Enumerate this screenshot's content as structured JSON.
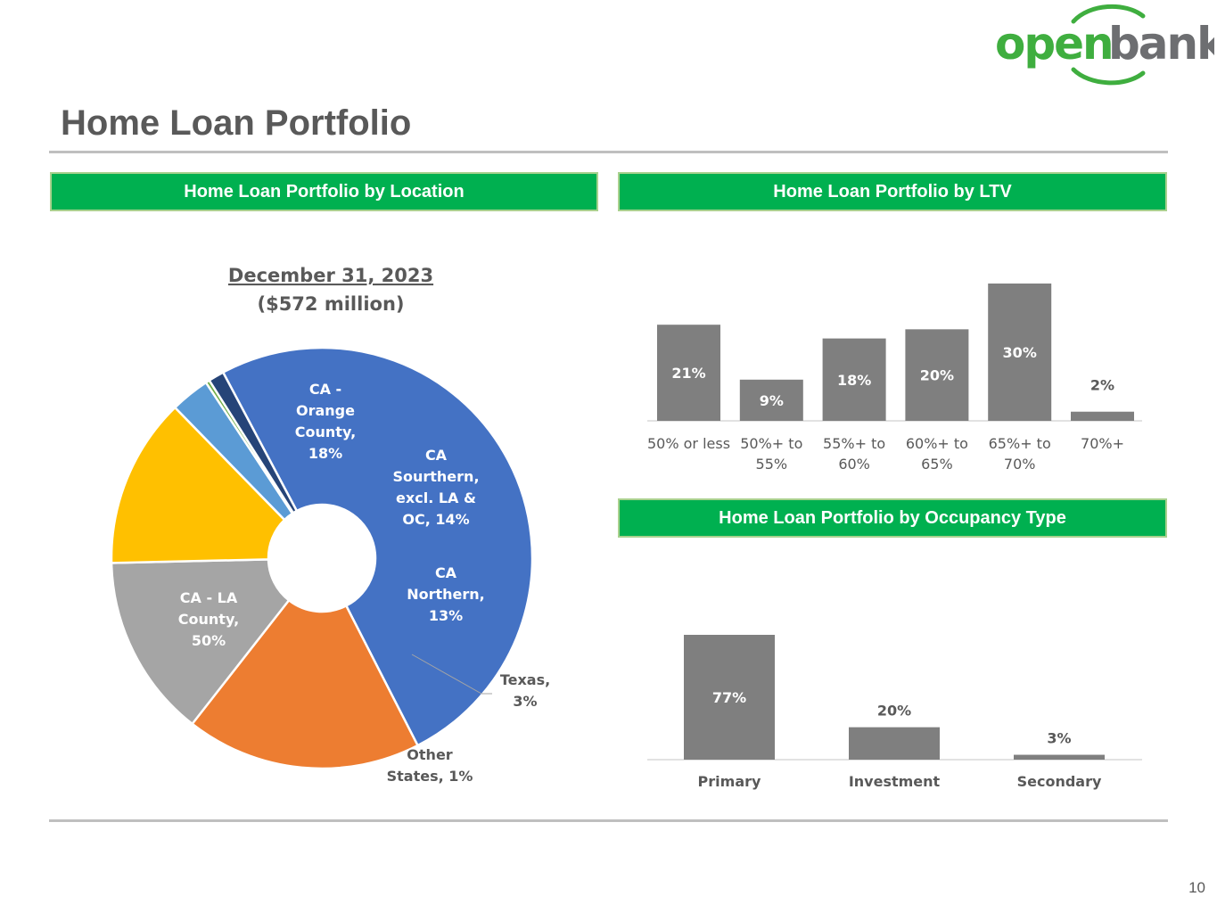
{
  "brand": {
    "logo_left": "open",
    "logo_right": "bank",
    "logo_color_green": "#3fae3f",
    "logo_color_gray": "#6d6e71"
  },
  "page": {
    "title": "Home Loan Portfolio",
    "page_number": "10"
  },
  "colors": {
    "header_green": "#00b050",
    "bar_gray": "#7f7f7f",
    "text_gray": "#595959"
  },
  "sections": {
    "location": "Home Loan Portfolio by Location",
    "ltv": "Home Loan Portfolio by LTV",
    "occupancy": "Home Loan Portfolio by Occupancy Type"
  },
  "chart_data": [
    {
      "type": "pie",
      "variant": "donut",
      "title": "December 31, 2023",
      "subtitle": "($572 million)",
      "slices": [
        {
          "label": "CA - LA County, 50%",
          "value": 50,
          "color": "#4472c4"
        },
        {
          "label": "CA - Orange County, 18%",
          "value": 18,
          "color": "#ed7d31"
        },
        {
          "label": "CA Sourthern, excl. LA & OC, 14%",
          "value": 14,
          "color": "#a5a5a5"
        },
        {
          "label": "CA Northern, 13%",
          "value": 13,
          "color": "#ffc000"
        },
        {
          "label": "Texas, 3%",
          "value": 3,
          "color": "#5b9bd5"
        },
        {
          "label": "",
          "value": 0.3,
          "color": "#70ad47"
        },
        {
          "label": "Other States, 1%",
          "value": 1.2,
          "color": "#264478"
        }
      ]
    },
    {
      "type": "bar",
      "categories": [
        "50% or less",
        "50%+ to 55%",
        "55%+ to 60%",
        "60%+ to 65%",
        "65%+ to 70%",
        "70%+"
      ],
      "values": [
        21,
        9,
        18,
        20,
        30,
        2
      ],
      "value_labels": [
        "21%",
        "9%",
        "18%",
        "20%",
        "30%",
        "2%"
      ],
      "ylim": [
        0,
        30
      ],
      "color": "#7f7f7f"
    },
    {
      "type": "bar",
      "categories": [
        "Primary",
        "Investment",
        "Secondary"
      ],
      "values": [
        77,
        20,
        3
      ],
      "value_labels": [
        "77%",
        "20%",
        "3%"
      ],
      "ylim": [
        0,
        77
      ],
      "color": "#7f7f7f"
    }
  ]
}
